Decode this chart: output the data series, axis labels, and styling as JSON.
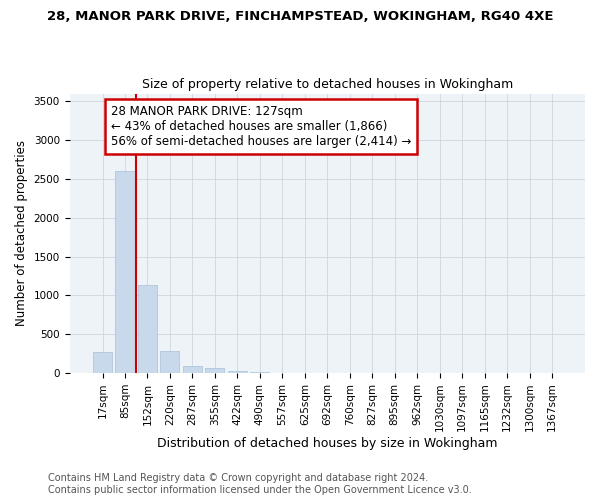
{
  "title1": "28, MANOR PARK DRIVE, FINCHAMPSTEAD, WOKINGHAM, RG40 4XE",
  "title2": "Size of property relative to detached houses in Wokingham",
  "xlabel": "Distribution of detached houses by size in Wokingham",
  "ylabel": "Number of detached properties",
  "property_label": "28 MANOR PARK DRIVE: 127sqm",
  "annotation_line1": "← 43% of detached houses are smaller (1,866)",
  "annotation_line2": "56% of semi-detached houses are larger (2,414) →",
  "footer1": "Contains HM Land Registry data © Crown copyright and database right 2024.",
  "footer2": "Contains public sector information licensed under the Open Government Licence v3.0.",
  "bar_color": "#c9d9ec",
  "bar_edge_color": "#a8c0d8",
  "vline_color": "#cc0000",
  "annotation_box_color": "#cc0000",
  "background_color": "#ffffff",
  "plot_bg_color": "#eef3f8",
  "grid_color": "#c8d0dc",
  "categories": [
    "17sqm",
    "85sqm",
    "152sqm",
    "220sqm",
    "287sqm",
    "355sqm",
    "422sqm",
    "490sqm",
    "557sqm",
    "625sqm",
    "692sqm",
    "760sqm",
    "827sqm",
    "895sqm",
    "962sqm",
    "1030sqm",
    "1097sqm",
    "1165sqm",
    "1232sqm",
    "1300sqm",
    "1367sqm"
  ],
  "values": [
    275,
    2600,
    1130,
    280,
    85,
    60,
    30,
    8,
    4,
    3,
    2,
    2,
    1,
    1,
    1,
    1,
    0,
    0,
    0,
    0,
    0
  ],
  "vline_x": 1.5,
  "ylim": [
    0,
    3600
  ],
  "yticks": [
    0,
    500,
    1000,
    1500,
    2000,
    2500,
    3000,
    3500
  ],
  "title1_fontsize": 9.5,
  "title2_fontsize": 9,
  "xlabel_fontsize": 9,
  "ylabel_fontsize": 8.5,
  "tick_fontsize": 7.5,
  "annotation_fontsize": 8.5,
  "footer_fontsize": 7
}
